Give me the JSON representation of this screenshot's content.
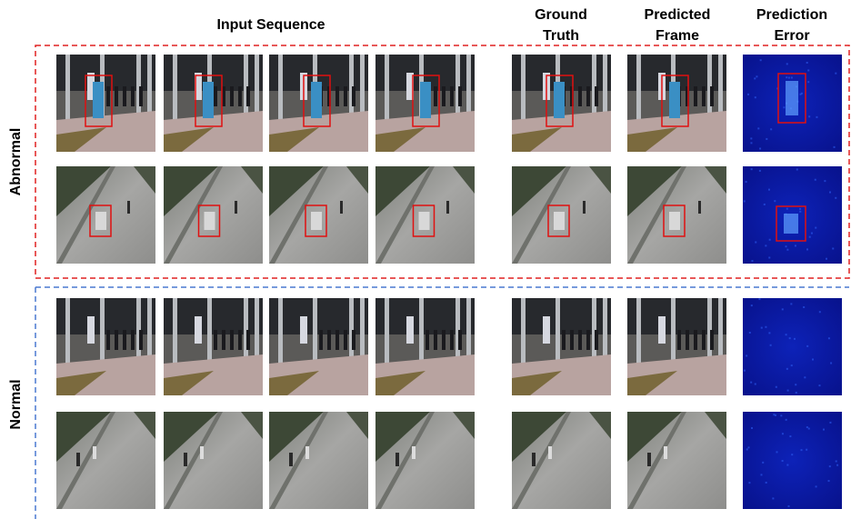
{
  "header": {
    "input_sequence": "Input Sequence",
    "ground_truth": [
      "Ground",
      "Truth"
    ],
    "predicted_frame": [
      "Predicted",
      "Frame"
    ],
    "prediction_error": [
      "Prediction",
      "Error"
    ]
  },
  "rows": {
    "abnormal": "Abnormal",
    "normal": "Normal"
  }
}
